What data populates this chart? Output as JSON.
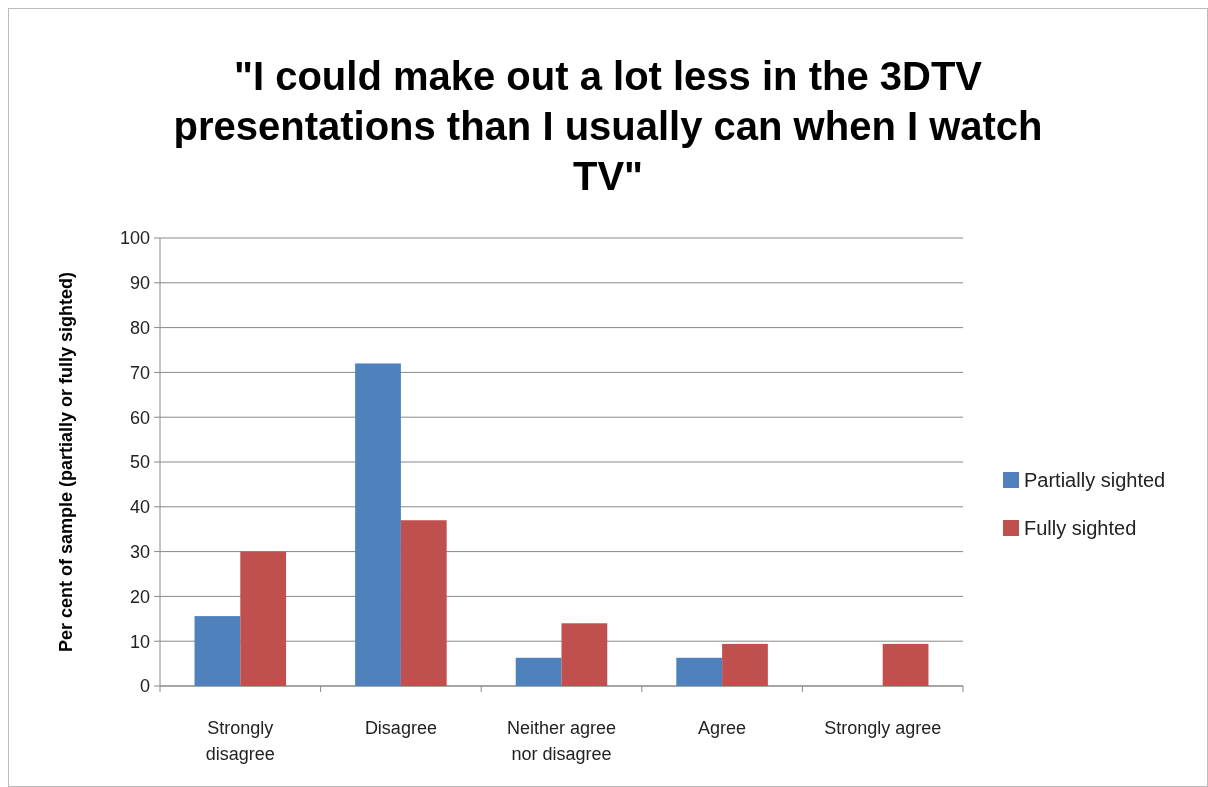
{
  "chart_data": {
    "type": "bar",
    "title": "\"I could make out a lot less in the 3DTV presentations than I usually can when I watch TV\"",
    "ylabel": "Per cent of sample  (partially or fully sighted)",
    "categories": [
      "Strongly disagree",
      "Disagree",
      "Neither agree nor disagree",
      "Agree",
      "Strongly agree"
    ],
    "series": [
      {
        "name": "Partially sighted",
        "color": "#4f81bd",
        "values": [
          15.6,
          72,
          6.3,
          6.3,
          0
        ]
      },
      {
        "name": "Fully sighted",
        "color": "#c0504d",
        "values": [
          30,
          37,
          14,
          9.4,
          9.4
        ]
      }
    ],
    "ylim": [
      0,
      100
    ],
    "yticks": [
      0,
      10,
      20,
      30,
      40,
      50,
      60,
      70,
      80,
      90,
      100
    ],
    "grid": "y",
    "legend": "right"
  }
}
